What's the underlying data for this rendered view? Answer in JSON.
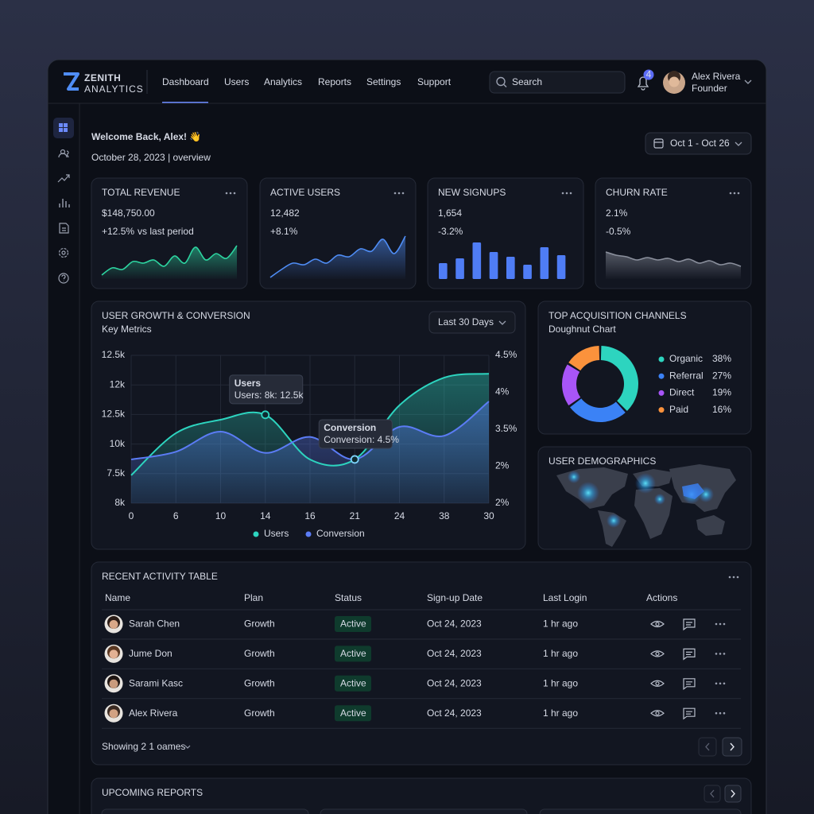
{
  "brand": {
    "name": "ZENITH",
    "tagline": "ANALYTICS"
  },
  "nav": [
    "Dashboard",
    "Users",
    "Analytics",
    "Reports",
    "Settings",
    "Support"
  ],
  "search": "Search",
  "notifications": 4,
  "user": {
    "name": "Alex Rivera",
    "role": "Founder"
  },
  "header": {
    "title": "Welcome Back, Alex! 👋",
    "subtitle": "October 28, 2023 | overview"
  },
  "date_range": "Oct 1 - Oct 26",
  "kpis": [
    {
      "label": "TOTAL REVENUE",
      "value": "$148,750.00",
      "change": "+12.5%",
      "note": "vs last period",
      "type": "area",
      "color": "#2dd4a0",
      "trend": [
        5,
        14,
        12,
        22,
        20,
        24,
        16,
        29,
        20,
        40,
        24,
        32,
        26,
        42
      ]
    },
    {
      "label": "ACTIVE USERS",
      "value": "12,482",
      "change": "+8.1%",
      "type": "area",
      "color": "#4f8df5",
      "trend": [
        2,
        12,
        20,
        18,
        25,
        20,
        30,
        28,
        38,
        35,
        50,
        32,
        54
      ]
    },
    {
      "label": "NEW SIGNUPS",
      "value": "1,654",
      "change": "-3.2%",
      "type": "bar",
      "color": "#4f7df5",
      "trend": [
        20,
        26,
        46,
        34,
        28,
        18,
        40,
        30
      ]
    },
    {
      "label": "CHURN RATE",
      "value": "2.1%",
      "change": "-0.5%",
      "type": "area",
      "color": "#8a8f9c",
      "trend": [
        34,
        30,
        28,
        24,
        27,
        24,
        26,
        22,
        25,
        20,
        23,
        18,
        20,
        16
      ]
    }
  ],
  "growth": {
    "type": "line",
    "title": "USER GROWTH & CONVERSION",
    "subtitle": "Key Metrics",
    "range": "Last 30 Days",
    "categories": [
      0,
      6,
      10,
      14,
      16,
      21,
      24,
      38,
      30
    ],
    "y_labels": [
      "12.5k",
      "12k",
      "12.5k",
      "10k",
      "7.5k",
      "8k"
    ],
    "y2_labels": [
      "4.5%",
      "4%",
      "3.5%",
      "2%",
      "2%"
    ],
    "ylim": [
      8000,
      12500
    ],
    "y2lim": [
      2,
      4.5
    ],
    "grid": true,
    "series": [
      {
        "name": "Users",
        "color": "#2dd4bf",
        "values": [
          8850,
          10130,
          10540,
          10690,
          9330,
          9330,
          10980,
          11820,
          11940
        ]
      },
      {
        "name": "Conversion",
        "color": "#5b7cf5",
        "axis": "y2",
        "values": [
          2.74,
          2.87,
          3.21,
          2.85,
          3.12,
          2.74,
          3.29,
          3.14,
          3.72
        ]
      }
    ],
    "annotations": [
      {
        "title": "Users",
        "text": "Users: 8k: 12.5k"
      },
      {
        "title": "Conversion",
        "text": "Conversion: 4.5%"
      }
    ]
  },
  "channels": {
    "type": "donut",
    "title": "TOP ACQUISITION CHANNELS",
    "subtitle": "Doughnut Chart",
    "categories": [
      "Organic",
      "Referral",
      "Direct",
      "Paid"
    ],
    "values": [
      38,
      27,
      19,
      16
    ],
    "value_labels": [
      "38%",
      "27%",
      "19%",
      "16%"
    ],
    "colors": [
      "#2dd4bf",
      "#3b82f6",
      "#a855f7",
      "#fb923c"
    ]
  },
  "demographics": {
    "title": "USER DEMOGRAPHICS"
  },
  "activity": {
    "title": "RECENT ACTIVITY TABLE",
    "columns": [
      "Name",
      "Plan",
      "Status",
      "Sign-up Date",
      "Last Login",
      "Actions"
    ],
    "rows": [
      [
        "Sarah Chen",
        "Growth",
        "Active",
        "Oct 24, 2023",
        "1 hr ago"
      ],
      [
        "Jume Don",
        "Growth",
        "Active",
        "Oct 24, 2023",
        "1 hr ago"
      ],
      [
        "Sarami Kasc",
        "Growth",
        "Active",
        "Oct 24, 2023",
        "1 hr ago"
      ],
      [
        "Alex Rivera",
        "Growth",
        "Active",
        "Oct 24, 2023",
        "1 hr ago"
      ]
    ],
    "footer": "Showing 2 1 oames"
  },
  "reports": {
    "title": "UPCOMING REPORTS"
  }
}
